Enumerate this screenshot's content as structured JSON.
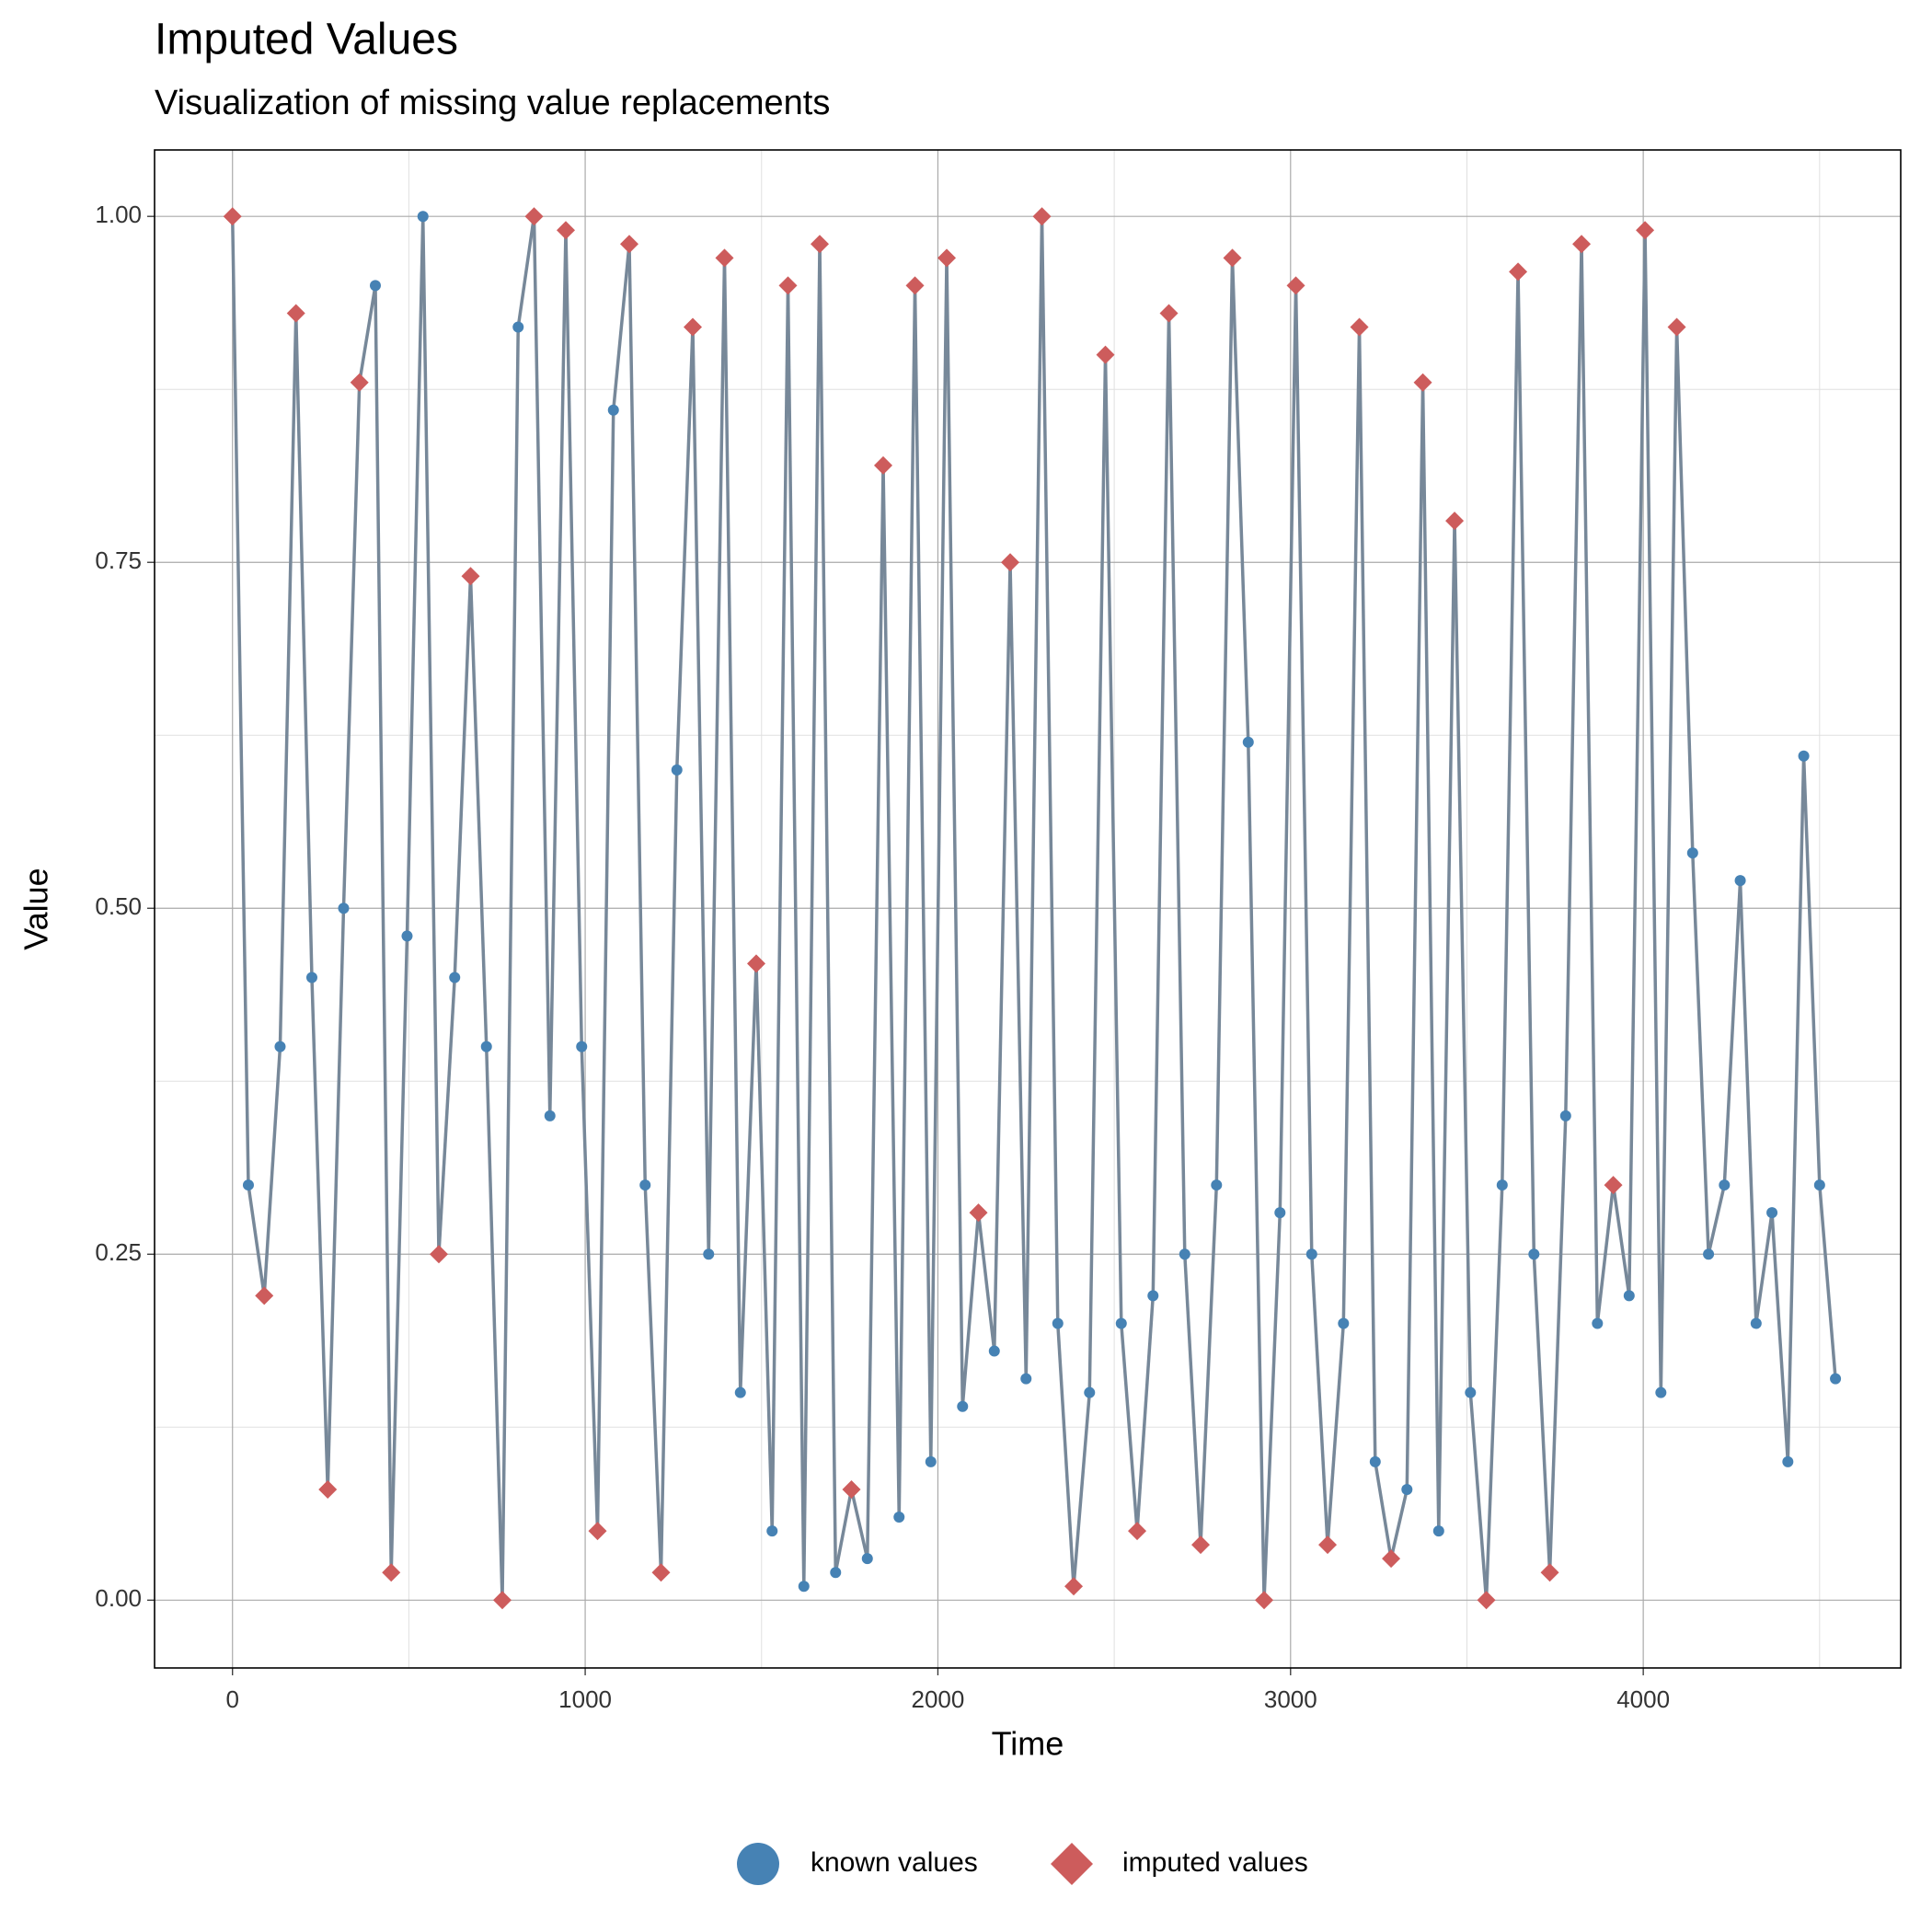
{
  "chart_data": {
    "type": "line",
    "title": "Imputed Values",
    "subtitle": "Visualization of missing value replacements",
    "x_label": "Time",
    "y_label": "Value",
    "xlim": [
      -221,
      4730
    ],
    "ylim": [
      -0.049,
      1.048
    ],
    "xticks": [
      0,
      1000,
      2000,
      3000,
      4000
    ],
    "yticks": [
      {
        "value": 0,
        "label": "0.00"
      },
      {
        "value": 0.25,
        "label": "0.25"
      },
      {
        "value": 0.5,
        "label": "0.50"
      },
      {
        "value": 0.75,
        "label": "0.75"
      },
      {
        "value": 1,
        "label": "1.00"
      }
    ],
    "grid": true,
    "line_color": "#778899",
    "legend_position": "bottom",
    "x": [
      0,
      45,
      90,
      135,
      180,
      225,
      270,
      315,
      360,
      405,
      450,
      495,
      540,
      585,
      630,
      675,
      720,
      765,
      810,
      855,
      900,
      945,
      990,
      1035,
      1080,
      1125,
      1170,
      1215,
      1260,
      1305,
      1350,
      1395,
      1440,
      1485,
      1530,
      1575,
      1620,
      1665,
      1710,
      1755,
      1800,
      1845,
      1890,
      1935,
      1980,
      2025,
      2070,
      2115,
      2160,
      2205,
      2250,
      2295,
      2340,
      2385,
      2430,
      2475,
      2520,
      2565,
      2610,
      2655,
      2700,
      2745,
      2790,
      2835,
      2880,
      2925,
      2970,
      3015,
      3060,
      3105,
      3150,
      3195,
      3240,
      3285,
      3330,
      3375,
      3420,
      3465,
      3510,
      3555,
      3600,
      3645,
      3690,
      3735,
      3780,
      3825,
      3870,
      3915,
      3960,
      4005,
      4050,
      4095,
      4140,
      4185,
      4230,
      4275,
      4320,
      4365,
      4410,
      4455,
      4500,
      4545
    ],
    "series": [
      {
        "name": "known values",
        "color": "#4682b4",
        "marker": "circle",
        "values": [
          null,
          0.3,
          null,
          0.4,
          null,
          0.45,
          null,
          0.5,
          null,
          0.95,
          null,
          0.48,
          1.0,
          null,
          0.45,
          null,
          0.4,
          null,
          0.92,
          null,
          0.35,
          null,
          0.4,
          null,
          0.86,
          null,
          0.3,
          null,
          0.6,
          null,
          0.25,
          null,
          0.15,
          null,
          0.05,
          null,
          0.01,
          null,
          0.02,
          null,
          0.03,
          null,
          0.06,
          null,
          0.1,
          null,
          0.14,
          null,
          0.18,
          null,
          0.16,
          null,
          0.2,
          null,
          0.15,
          null,
          0.2,
          null,
          0.22,
          null,
          0.25,
          null,
          0.3,
          null,
          0.62,
          null,
          0.28,
          null,
          0.25,
          null,
          0.2,
          null,
          0.1,
          null,
          0.08,
          null,
          0.05,
          null,
          0.15,
          null,
          0.3,
          null,
          0.25,
          null,
          0.35,
          null,
          0.2,
          null,
          0.22,
          null,
          0.15,
          null,
          0.54,
          0.25,
          0.3,
          0.52,
          0.2,
          0.28,
          0.1,
          0.61,
          0.3,
          0.16
        ]
      },
      {
        "name": "imputed values",
        "color": "#cd5c5c",
        "marker": "diamond",
        "values": [
          1.0,
          null,
          0.22,
          null,
          0.93,
          null,
          0.08,
          null,
          0.88,
          null,
          0.02,
          null,
          null,
          0.25,
          null,
          0.74,
          null,
          0.0,
          null,
          1.0,
          null,
          0.99,
          null,
          0.05,
          null,
          0.98,
          null,
          0.02,
          null,
          0.92,
          null,
          0.97,
          null,
          0.46,
          null,
          0.95,
          null,
          0.98,
          null,
          0.08,
          null,
          0.82,
          null,
          0.95,
          null,
          0.97,
          null,
          0.28,
          null,
          0.75,
          null,
          1.0,
          null,
          0.01,
          null,
          0.9,
          null,
          0.05,
          null,
          0.93,
          null,
          0.04,
          null,
          0.97,
          null,
          0.0,
          null,
          0.95,
          null,
          0.04,
          null,
          0.92,
          null,
          0.03,
          null,
          0.88,
          null,
          0.78,
          null,
          0.0,
          null,
          0.96,
          null,
          0.02,
          null,
          0.98,
          null,
          0.3,
          null,
          0.99,
          null,
          0.92,
          null,
          null,
          null,
          null,
          null,
          null,
          null,
          null,
          null,
          null
        ]
      }
    ]
  }
}
